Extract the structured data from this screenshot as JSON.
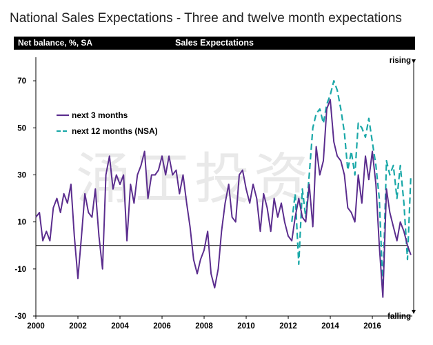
{
  "title": "National Sales Expectations - Three and twelve month expectations",
  "header": {
    "left_label": "Net balance, %, SA",
    "center_label": "Sales Expectations"
  },
  "watermark": "涌正投资",
  "chart_data": {
    "type": "line",
    "ylabel": "Net balance, %, SA",
    "ylim": [
      -30,
      80
    ],
    "yticks": [
      -30,
      -10,
      10,
      30,
      50,
      70
    ],
    "xlim": [
      2000,
      2017.9
    ],
    "xticks": [
      2000,
      2002,
      2004,
      2006,
      2008,
      2010,
      2012,
      2014,
      2016
    ],
    "zero_line": 0,
    "annotations": {
      "top": "rising",
      "bottom": "falling"
    },
    "legend_position": "upper-left",
    "series": [
      {
        "name": "next 3 months",
        "color": "#5b2d8e",
        "style": "solid",
        "points": [
          [
            2000.0,
            12
          ],
          [
            2000.17,
            14
          ],
          [
            2000.33,
            2
          ],
          [
            2000.5,
            6
          ],
          [
            2000.67,
            2
          ],
          [
            2000.83,
            16
          ],
          [
            2001.0,
            20
          ],
          [
            2001.17,
            14
          ],
          [
            2001.33,
            22
          ],
          [
            2001.5,
            18
          ],
          [
            2001.67,
            26
          ],
          [
            2001.83,
            4
          ],
          [
            2002.0,
            -14
          ],
          [
            2002.17,
            4
          ],
          [
            2002.33,
            22
          ],
          [
            2002.5,
            14
          ],
          [
            2002.67,
            12
          ],
          [
            2002.83,
            24
          ],
          [
            2003.0,
            4
          ],
          [
            2003.17,
            -10
          ],
          [
            2003.33,
            30
          ],
          [
            2003.5,
            38
          ],
          [
            2003.67,
            24
          ],
          [
            2003.83,
            30
          ],
          [
            2004.0,
            26
          ],
          [
            2004.17,
            30
          ],
          [
            2004.33,
            2
          ],
          [
            2004.5,
            26
          ],
          [
            2004.67,
            18
          ],
          [
            2004.83,
            30
          ],
          [
            2005.0,
            34
          ],
          [
            2005.17,
            40
          ],
          [
            2005.33,
            20
          ],
          [
            2005.5,
            30
          ],
          [
            2005.67,
            30
          ],
          [
            2005.83,
            32
          ],
          [
            2006.0,
            38
          ],
          [
            2006.17,
            30
          ],
          [
            2006.33,
            38
          ],
          [
            2006.5,
            30
          ],
          [
            2006.67,
            32
          ],
          [
            2006.83,
            22
          ],
          [
            2007.0,
            30
          ],
          [
            2007.17,
            18
          ],
          [
            2007.33,
            8
          ],
          [
            2007.5,
            -6
          ],
          [
            2007.67,
            -12
          ],
          [
            2007.83,
            -6
          ],
          [
            2008.0,
            -2
          ],
          [
            2008.17,
            6
          ],
          [
            2008.33,
            -12
          ],
          [
            2008.5,
            -18
          ],
          [
            2008.67,
            -10
          ],
          [
            2008.83,
            6
          ],
          [
            2009.0,
            18
          ],
          [
            2009.17,
            26
          ],
          [
            2009.33,
            12
          ],
          [
            2009.5,
            10
          ],
          [
            2009.67,
            30
          ],
          [
            2009.83,
            32
          ],
          [
            2010.0,
            24
          ],
          [
            2010.17,
            18
          ],
          [
            2010.33,
            26
          ],
          [
            2010.5,
            20
          ],
          [
            2010.67,
            6
          ],
          [
            2010.83,
            22
          ],
          [
            2011.0,
            16
          ],
          [
            2011.17,
            6
          ],
          [
            2011.33,
            20
          ],
          [
            2011.5,
            12
          ],
          [
            2011.67,
            18
          ],
          [
            2011.83,
            10
          ],
          [
            2012.0,
            4
          ],
          [
            2012.17,
            2
          ],
          [
            2012.33,
            12
          ],
          [
            2012.5,
            20
          ],
          [
            2012.67,
            12
          ],
          [
            2012.83,
            10
          ],
          [
            2013.0,
            26
          ],
          [
            2013.17,
            8
          ],
          [
            2013.33,
            42
          ],
          [
            2013.5,
            30
          ],
          [
            2013.67,
            36
          ],
          [
            2013.83,
            58
          ],
          [
            2014.0,
            62
          ],
          [
            2014.17,
            44
          ],
          [
            2014.33,
            38
          ],
          [
            2014.5,
            36
          ],
          [
            2014.67,
            30
          ],
          [
            2014.83,
            16
          ],
          [
            2015.0,
            14
          ],
          [
            2015.17,
            10
          ],
          [
            2015.33,
            30
          ],
          [
            2015.5,
            18
          ],
          [
            2015.67,
            38
          ],
          [
            2015.83,
            28
          ],
          [
            2016.0,
            40
          ],
          [
            2016.17,
            26
          ],
          [
            2016.33,
            0
          ],
          [
            2016.5,
            -22
          ],
          [
            2016.67,
            24
          ],
          [
            2016.83,
            14
          ],
          [
            2017.0,
            8
          ],
          [
            2017.17,
            2
          ],
          [
            2017.33,
            10
          ],
          [
            2017.5,
            6
          ],
          [
            2017.67,
            0
          ],
          [
            2017.83,
            -4
          ]
        ]
      },
      {
        "name": "next 12 months (NSA)",
        "color": "#1aa8a8",
        "style": "dashed",
        "points": [
          [
            2012.17,
            10
          ],
          [
            2012.33,
            22
          ],
          [
            2012.5,
            -8
          ],
          [
            2012.67,
            24
          ],
          [
            2012.83,
            12
          ],
          [
            2013.0,
            30
          ],
          [
            2013.17,
            50
          ],
          [
            2013.33,
            56
          ],
          [
            2013.5,
            58
          ],
          [
            2013.67,
            52
          ],
          [
            2013.83,
            60
          ],
          [
            2014.0,
            64
          ],
          [
            2014.17,
            70
          ],
          [
            2014.33,
            66
          ],
          [
            2014.5,
            58
          ],
          [
            2014.67,
            48
          ],
          [
            2014.83,
            32
          ],
          [
            2015.0,
            40
          ],
          [
            2015.17,
            30
          ],
          [
            2015.33,
            52
          ],
          [
            2015.5,
            50
          ],
          [
            2015.67,
            46
          ],
          [
            2015.83,
            54
          ],
          [
            2016.0,
            44
          ],
          [
            2016.17,
            34
          ],
          [
            2016.33,
            20
          ],
          [
            2016.5,
            -18
          ],
          [
            2016.67,
            36
          ],
          [
            2016.83,
            30
          ],
          [
            2017.0,
            34
          ],
          [
            2017.17,
            20
          ],
          [
            2017.33,
            34
          ],
          [
            2017.5,
            18
          ],
          [
            2017.67,
            -6
          ],
          [
            2017.83,
            30
          ]
        ]
      }
    ]
  }
}
